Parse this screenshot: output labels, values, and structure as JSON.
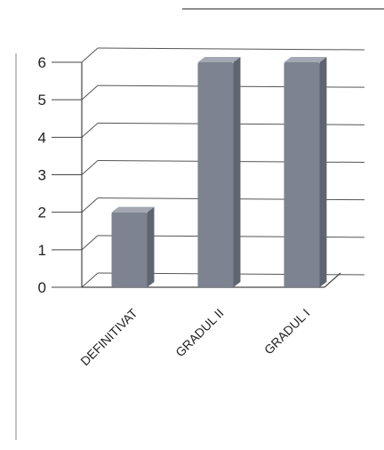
{
  "chart_data": {
    "type": "bar",
    "categories": [
      "DEFINITIVAT",
      "GRADUL II",
      "GRADUL I"
    ],
    "values": [
      2,
      6,
      6
    ],
    "ylim": [
      0,
      6
    ],
    "yticks": [
      "0",
      "1",
      "2",
      "3",
      "4",
      "5",
      "6"
    ],
    "grid": true,
    "style": "3d-column",
    "colors": {
      "bar_front": "#7d8390",
      "bar_side": "#5f6570",
      "bar_top": "#a3a8b2",
      "grid": "#555555",
      "axis": "#444444"
    }
  }
}
